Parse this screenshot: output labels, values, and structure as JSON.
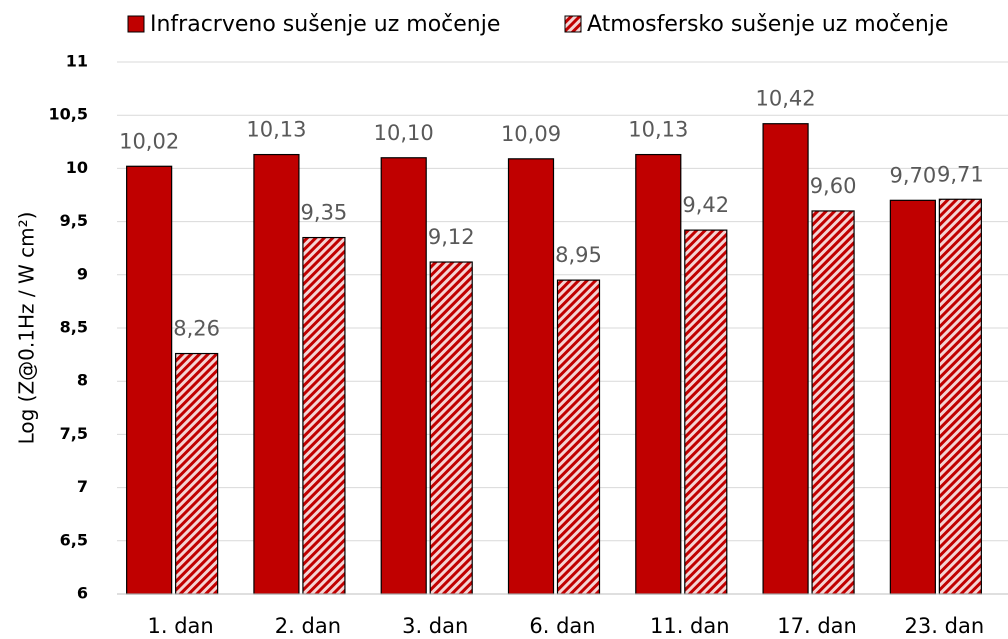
{
  "chart_data": {
    "type": "bar",
    "ylabel": "Log (Z@0.1Hz / W cm²)",
    "categories": [
      "1. dan",
      "2. dan",
      "3. dan",
      "6. dan",
      "11. dan",
      "17. dan",
      "23. dan"
    ],
    "series": [
      {
        "name": "Infracrveno sušenje uz močenje",
        "color": "#c00000",
        "pattern": "solid",
        "values": [
          10.02,
          10.13,
          10.1,
          10.09,
          10.13,
          10.42,
          9.7
        ],
        "value_labels": [
          "10,02",
          "10,13",
          "10,10",
          "10,09",
          "10,13",
          "10,42",
          "9,70"
        ]
      },
      {
        "name": "Atmosfersko sušenje uz močenje",
        "color": "#c00000",
        "pattern": "hatch",
        "values": [
          8.26,
          9.35,
          9.12,
          8.95,
          9.42,
          9.6,
          9.71
        ],
        "value_labels": [
          "8,26",
          "9,35",
          "9,12",
          "8,95",
          "9,42",
          "9,60",
          "9,71"
        ]
      }
    ],
    "ylim": [
      6,
      11
    ],
    "yticks": [
      6,
      {
        "value": 6.5,
        "label": "6,5"
      },
      7,
      {
        "value": 7.5,
        "label": "7,5"
      },
      8,
      {
        "value": 8.5,
        "label": "8,5"
      },
      9,
      {
        "value": 9.5,
        "label": "9,5"
      },
      10,
      {
        "value": 10.5,
        "label": "10,5"
      },
      11
    ],
    "grid": true,
    "legend": "top"
  }
}
